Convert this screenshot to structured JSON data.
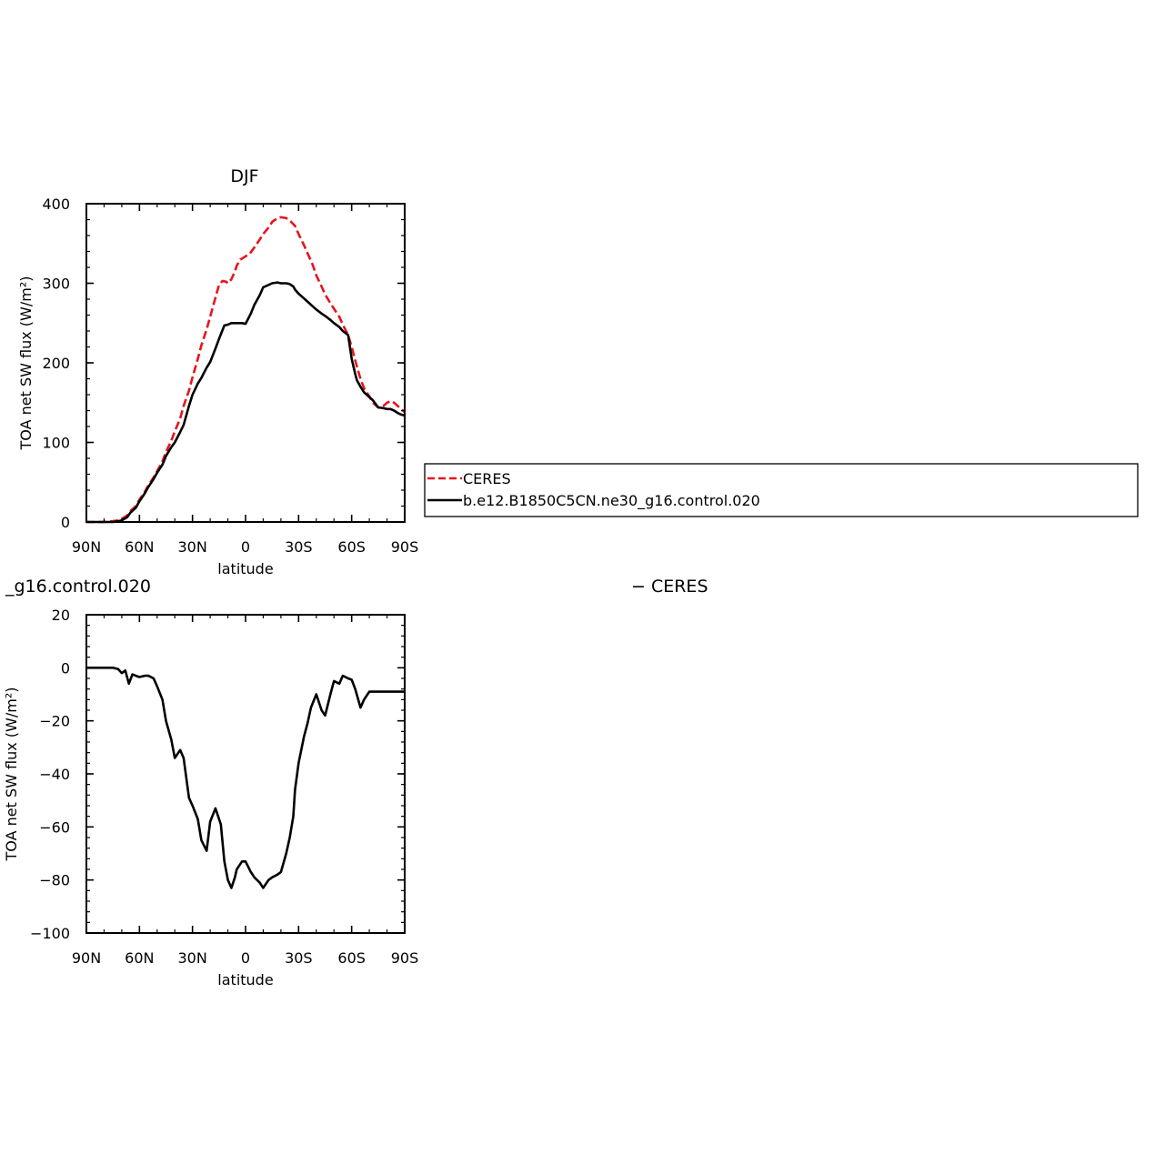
{
  "chart_data": [
    {
      "type": "line",
      "title": "DJF",
      "xlabel": "latitude",
      "ylabel": "TOA net SW flux (W/m²)",
      "xlim": [
        90,
        -90
      ],
      "ylim": [
        0,
        400
      ],
      "xticks": [
        90,
        60,
        30,
        0,
        -30,
        -60,
        -90
      ],
      "xtick_labels": [
        "90N",
        "60N",
        "30N",
        "0",
        "30S",
        "60S",
        "90S"
      ],
      "yticks": [
        0,
        100,
        200,
        300,
        400
      ],
      "ytick_labels": [
        "0",
        "100",
        "200",
        "300",
        "400"
      ],
      "legend_position": "right",
      "series": [
        {
          "name": "CERES",
          "color": "#e8141e",
          "dash": "dashed",
          "x": [
            90,
            80,
            75,
            72,
            70,
            67,
            65,
            62,
            60,
            57,
            55,
            52,
            50,
            47,
            45,
            42,
            40,
            37,
            35,
            32,
            30,
            27,
            25,
            22,
            20,
            17,
            15,
            13,
            11,
            10,
            8,
            6,
            5,
            3,
            2,
            0,
            -2,
            -5,
            -8,
            -10,
            -13,
            -15,
            -18,
            -20,
            -23,
            -25,
            -28,
            -30,
            -33,
            -35,
            -38,
            -40,
            -43,
            -45,
            -48,
            -50,
            -53,
            -55,
            -58,
            -60,
            -63,
            -65,
            -67,
            -70,
            -72,
            -75,
            -78,
            -80,
            -82,
            -84,
            -86,
            -88,
            -90
          ],
          "y": [
            0,
            0,
            1,
            2,
            4,
            8,
            14,
            20,
            28,
            38,
            46,
            56,
            64,
            76,
            88,
            102,
            114,
            130,
            146,
            165,
            182,
            205,
            222,
            242,
            258,
            282,
            298,
            303,
            302,
            300,
            305,
            315,
            322,
            330,
            331,
            334,
            336,
            345,
            355,
            362,
            370,
            377,
            382,
            383,
            382,
            379,
            372,
            362,
            348,
            338,
            323,
            310,
            296,
            286,
            275,
            268,
            258,
            248,
            235,
            220,
            195,
            180,
            168,
            158,
            150,
            144,
            146,
            150,
            152,
            150,
            146,
            142,
            138
          ]
        },
        {
          "name": "b.e12.B1850C5CN.ne30_g16.control.020",
          "color": "#000000",
          "dash": "solid",
          "x": [
            90,
            80,
            75,
            72,
            70,
            67,
            65,
            62,
            60,
            57,
            55,
            52,
            50,
            47,
            45,
            42,
            40,
            37,
            35,
            32,
            30,
            27,
            25,
            22,
            20,
            17,
            15,
            12,
            10,
            8,
            6,
            5,
            3,
            2,
            0,
            -3,
            -5,
            -8,
            -10,
            -13,
            -15,
            -18,
            -20,
            -23,
            -25,
            -27,
            -28,
            -30,
            -32,
            -35,
            -38,
            -40,
            -43,
            -45,
            -48,
            -50,
            -53,
            -55,
            -58,
            -60,
            -62,
            -63,
            -65,
            -67,
            -70,
            -72,
            -75,
            -78,
            -80,
            -82,
            -84,
            -86,
            -88,
            -90
          ],
          "y": [
            0,
            0,
            0,
            1,
            2,
            6,
            12,
            18,
            26,
            36,
            44,
            54,
            62,
            72,
            83,
            94,
            100,
            113,
            122,
            146,
            160,
            174,
            181,
            194,
            201,
            218,
            230,
            247,
            248,
            250,
            250,
            250,
            250,
            250,
            249,
            262,
            273,
            285,
            295,
            298,
            300,
            301,
            300,
            300,
            299,
            296,
            292,
            287,
            283,
            277,
            271,
            267,
            262,
            259,
            254,
            250,
            245,
            240,
            235,
            205,
            186,
            178,
            170,
            163,
            157,
            153,
            144,
            143,
            142,
            142,
            140,
            137,
            135,
            134
          ]
        }
      ]
    },
    {
      "type": "line",
      "title": "_g16.control.020",
      "title_right": "−  CERES",
      "xlabel": "latitude",
      "ylabel": "TOA net SW flux (W/m²)",
      "xlim": [
        90,
        -90
      ],
      "ylim": [
        -100,
        20
      ],
      "xticks": [
        90,
        60,
        30,
        0,
        -30,
        -60,
        -90
      ],
      "xtick_labels": [
        "90N",
        "60N",
        "30N",
        "0",
        "30S",
        "60S",
        "90S"
      ],
      "yticks": [
        20,
        0,
        -20,
        -40,
        -60,
        -80,
        -100
      ],
      "ytick_labels": [
        "20",
        "0",
        "−20",
        "−40",
        "−60",
        "−80",
        "−100"
      ],
      "series": [
        {
          "color": "#000000",
          "dash": "solid",
          "x": [
            90,
            75,
            72,
            70,
            68,
            66,
            64,
            62,
            60,
            57,
            55,
            52,
            50,
            47,
            45,
            42,
            40,
            37,
            35,
            32,
            30,
            27,
            25,
            22,
            20,
            17,
            14,
            12,
            10,
            8,
            6,
            5,
            3,
            2,
            0,
            -3,
            -5,
            -8,
            -10,
            -13,
            -15,
            -18,
            -20,
            -23,
            -25,
            -27,
            -28,
            -30,
            -33,
            -35,
            -37,
            -40,
            -43,
            -45,
            -48,
            -50,
            -53,
            -55,
            -58,
            -60,
            -62,
            -65,
            -67,
            -70,
            -73,
            -75,
            -78,
            -80,
            -83,
            -85,
            -87,
            -88,
            -90
          ],
          "y": [
            0,
            0,
            -0.5,
            -2,
            -1,
            -6,
            -2.5,
            -3,
            -3.5,
            -3,
            -3,
            -4,
            -7,
            -12,
            -20,
            -27,
            -34,
            -31,
            -34,
            -49,
            -52,
            -57,
            -65,
            -69,
            -58,
            -53,
            -59,
            -73,
            -80,
            -83,
            -79,
            -76,
            -74,
            -73,
            -73,
            -77,
            -79,
            -81,
            -83,
            -80,
            -79,
            -78,
            -77,
            -70,
            -64,
            -56,
            -46,
            -36,
            -26,
            -21,
            -15,
            -10,
            -16,
            -18,
            -10,
            -5,
            -6,
            -3,
            -4,
            -4.5,
            -8,
            -15,
            -12,
            -9,
            -9,
            -9,
            -9,
            -9,
            -9,
            -9,
            -9,
            -9,
            -9
          ]
        }
      ]
    }
  ]
}
